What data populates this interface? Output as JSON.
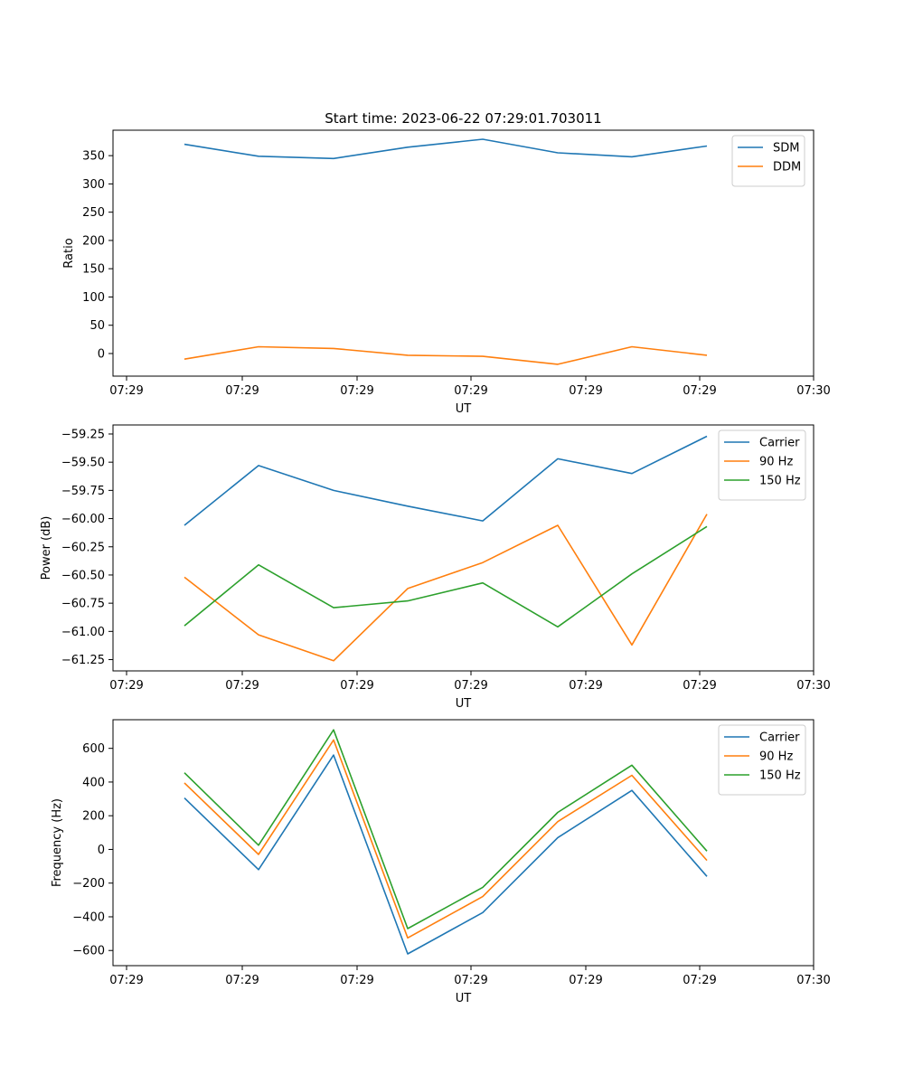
{
  "chart_data": [
    {
      "type": "line",
      "title": "Start time: 2023-06-22 07:29:01.703011",
      "xlabel": "UT",
      "ylabel": "Ratio",
      "x_ticks": [
        "07:29",
        "07:29",
        "07:29",
        "07:29",
        "07:29",
        "07:29",
        "07:30"
      ],
      "y_ticks": [
        "0",
        "50",
        "100",
        "150",
        "200",
        "250",
        "300",
        "350"
      ],
      "ylim": [
        -40,
        395
      ],
      "legend_position": "top-right",
      "grid": false,
      "series": [
        {
          "name": "SDM",
          "color": "#1f77b4",
          "values": [
            370,
            349,
            345,
            365,
            379,
            355,
            348,
            367
          ]
        },
        {
          "name": "DDM",
          "color": "#ff7f0e",
          "values": [
            -10,
            12,
            9,
            -3,
            -5,
            -19,
            12,
            -3
          ]
        }
      ]
    },
    {
      "type": "line",
      "title": "",
      "xlabel": "UT",
      "ylabel": "Power (dB)",
      "x_ticks": [
        "07:29",
        "07:29",
        "07:29",
        "07:29",
        "07:29",
        "07:29",
        "07:30"
      ],
      "y_ticks": [
        "−61.25",
        "−61.00",
        "−60.75",
        "−60.50",
        "−60.25",
        "−60.00",
        "−59.75",
        "−59.50",
        "−59.25"
      ],
      "ylim": [
        -61.35,
        -59.17
      ],
      "legend_position": "top-right",
      "grid": false,
      "series": [
        {
          "name": "Carrier",
          "color": "#1f77b4",
          "values": [
            -60.06,
            -59.53,
            -59.75,
            -59.89,
            -60.02,
            -59.47,
            -59.6,
            -59.27
          ]
        },
        {
          "name": "90 Hz",
          "color": "#ff7f0e",
          "values": [
            -60.52,
            -61.03,
            -61.26,
            -60.62,
            -60.39,
            -60.06,
            -61.12,
            -59.96
          ]
        },
        {
          "name": "150 Hz",
          "color": "#2ca02c",
          "values": [
            -60.95,
            -60.41,
            -60.79,
            -60.73,
            -60.57,
            -60.96,
            -60.49,
            -60.07
          ]
        }
      ]
    },
    {
      "type": "line",
      "title": "",
      "xlabel": "UT",
      "ylabel": "Frequency (Hz)",
      "x_ticks": [
        "07:29",
        "07:29",
        "07:29",
        "07:29",
        "07:29",
        "07:29",
        "07:30"
      ],
      "y_ticks": [
        "−600",
        "−400",
        "−200",
        "0",
        "200",
        "400",
        "600"
      ],
      "ylim": [
        -690,
        770
      ],
      "legend_position": "top-right",
      "grid": false,
      "series": [
        {
          "name": "Carrier",
          "color": "#1f77b4",
          "values": [
            305,
            -120,
            560,
            -620,
            -375,
            70,
            350,
            -160
          ]
        },
        {
          "name": "90 Hz",
          "color": "#ff7f0e",
          "values": [
            395,
            -30,
            650,
            -525,
            -280,
            165,
            440,
            -65
          ]
        },
        {
          "name": "150 Hz",
          "color": "#2ca02c",
          "values": [
            455,
            25,
            710,
            -470,
            -225,
            220,
            500,
            -10
          ]
        }
      ]
    }
  ]
}
